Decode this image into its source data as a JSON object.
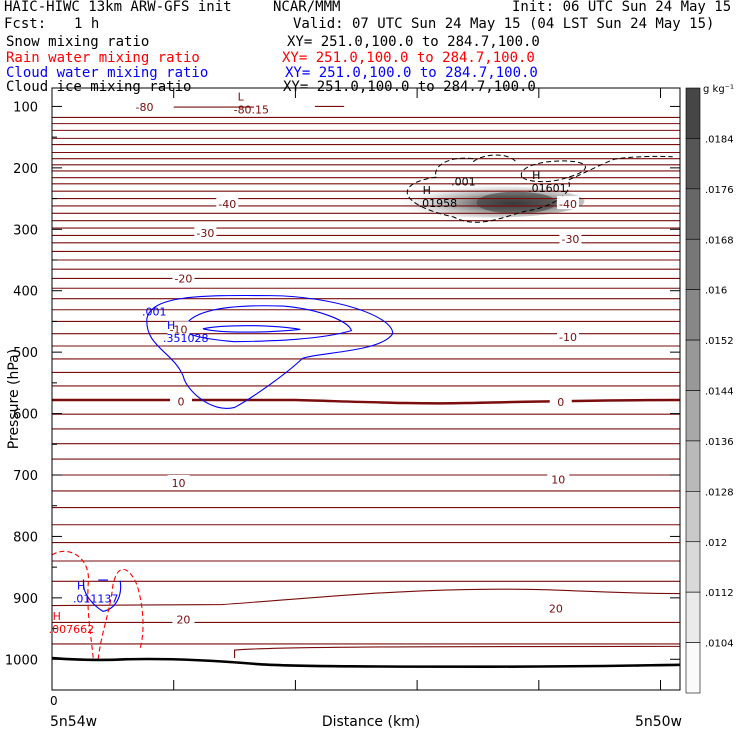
{
  "header": {
    "model": "HAIC-HIWC 13km ARW-GFS init",
    "org": "NCAR/MMM",
    "init": "Init: 06 UTC Sun 24 May 15",
    "fcst_label": "Fcst:",
    "fcst_value": "1 h",
    "valid": "Valid: 07 UTC Sun 24 May 15 (04 LST Sun 24 May 15)"
  },
  "fields": [
    {
      "name": "Snow mixing ratio",
      "xy": "XY= 251.0,100.0 to 284.7,100.0",
      "color": "#000000"
    },
    {
      "name": "Rain water mixing ratio",
      "xy": "XY= 251.0,100.0 to 284.7,100.0",
      "color": "#ff0000"
    },
    {
      "name": "Cloud water mixing ratio",
      "xy": "XY= 251.0,100.0 to 284.7,100.0",
      "color": "#0000ff"
    },
    {
      "name": "Cloud ice mixing ratio",
      "xy": "XY= 251.0,100.0 to 284.7,100.0",
      "color": "#000000"
    }
  ],
  "chart_data": {
    "type": "heatmap",
    "xlabel": "Distance (km)",
    "ylabel": "Pressure (hPa)",
    "ylim": [
      1050,
      70
    ],
    "xlim": [
      0,
      25.8
    ],
    "y_ticks": [
      100,
      200,
      300,
      400,
      500,
      600,
      700,
      800,
      900,
      1000
    ],
    "x_ticks": [
      0,
      5,
      10,
      15,
      20,
      25
    ],
    "x_tick_labels_shown": [
      "0"
    ],
    "x_endpoint_labels": {
      "left": "5n54w",
      "right": "5n50w"
    },
    "colorbar": {
      "unit": "g kg⁻¹",
      "levels": [
        0.0104,
        0.0112,
        0.012,
        0.0128,
        0.0136,
        0.0144,
        0.0152,
        0.016,
        0.0168,
        0.0176,
        0.0184
      ],
      "labels": [
        ".0104",
        ".0112",
        ".012",
        ".0128",
        ".0136",
        ".0144",
        ".0152",
        ".016",
        ".0168",
        ".0176",
        ".0184"
      ]
    },
    "isotherms": {
      "color": "#7a0c0c",
      "labels": [
        {
          "text": "-80",
          "x": 3.8,
          "p": 101
        },
        {
          "text": "-40",
          "x": 7.2,
          "p": 259
        },
        {
          "text": "-40",
          "x": 21.2,
          "p": 259
        },
        {
          "text": "-30",
          "x": 6.3,
          "p": 306
        },
        {
          "text": "-30",
          "x": 21.3,
          "p": 316
        },
        {
          "text": "-20",
          "x": 5.4,
          "p": 380
        },
        {
          "text": "-10",
          "x": 5.2,
          "p": 463
        },
        {
          "text": "-10",
          "x": 21.2,
          "p": 475
        },
        {
          "text": "0",
          "x": 5.3,
          "p": 580
        },
        {
          "text": "0",
          "x": 20.9,
          "p": 581
        },
        {
          "text": "10",
          "x": 5.2,
          "p": 713
        },
        {
          "text": "10",
          "x": 20.8,
          "p": 707
        },
        {
          "text": "20",
          "x": 5.4,
          "p": 935
        },
        {
          "text": "20",
          "x": 20.7,
          "p": 917
        }
      ]
    },
    "extrema": [
      {
        "type": "L",
        "value": "-80.15",
        "x": 8.2,
        "p": 100,
        "color": "#7a0c0c"
      },
      {
        "type": "H",
        "value": ".01601",
        "x": 20.3,
        "p": 228,
        "color": "#000000"
      },
      {
        "type": "H",
        "value": ".01958",
        "x": 15.8,
        "p": 252,
        "color": "#000000"
      },
      {
        "type": "H",
        "value": ".351028",
        "x": 5.3,
        "p": 472,
        "color": "#0000ff"
      },
      {
        "type": "H",
        "value": ".011137",
        "x": 1.6,
        "p": 896,
        "color": "#0000ff"
      },
      {
        "type": "H",
        "value": ".007662",
        "x": 0.6,
        "p": 946,
        "color": "#ff0000"
      }
    ],
    "contour_labels": [
      {
        "text": ".001",
        "x": 16.9,
        "p": 222,
        "color": "#000000"
      },
      {
        "text": ".001",
        "x": 4.2,
        "p": 434,
        "color": "#0000ff"
      }
    ],
    "shading": {
      "center_x": 19.0,
      "center_p": 255,
      "max_level": 0.0184
    }
  }
}
